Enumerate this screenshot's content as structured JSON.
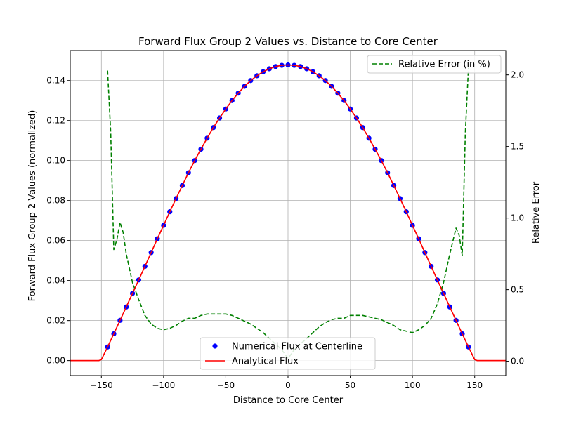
{
  "chart_data": {
    "type": "line",
    "title": "Forward Flux Group 2 Values vs. Distance to Core Center",
    "xlabel": "Distance to Core Center",
    "ylabel": "Forward Flux Group 2 Values (normalized)",
    "y2label": "Relative Error",
    "xlim": [
      -175,
      175
    ],
    "ylim": [
      -0.0075,
      0.155
    ],
    "y2lim": [
      -0.1,
      2.17
    ],
    "grid": true,
    "xticks": [
      -150,
      -100,
      -50,
      0,
      50,
      100,
      150
    ],
    "xtick_labels": [
      "−150",
      "−100",
      "−50",
      "0",
      "50",
      "100",
      "150"
    ],
    "yticks": [
      0.0,
      0.02,
      0.04,
      0.06,
      0.08,
      0.1,
      0.12,
      0.14
    ],
    "ytick_labels": [
      "0.00",
      "0.02",
      "0.04",
      "0.06",
      "0.08",
      "0.10",
      "0.12",
      "0.14"
    ],
    "y2ticks": [
      0.0,
      0.5,
      1.0,
      1.5,
      2.0
    ],
    "y2tick_labels": [
      "0.0",
      "0.5",
      "1.0",
      "1.5",
      "2.0"
    ],
    "series": [
      {
        "name": "Numerical Flux at Centerline",
        "kind": "scatter",
        "axis": "left",
        "color": "#0000ff",
        "edge_color": "#7b1fa2",
        "x": [
          -145,
          -140,
          -135,
          -130,
          -125,
          -120,
          -115,
          -110,
          -105,
          -100,
          -95,
          -90,
          -85,
          -80,
          -75,
          -70,
          -65,
          -60,
          -55,
          -50,
          -45,
          -40,
          -35,
          -30,
          -25,
          -20,
          -15,
          -10,
          -5,
          0,
          5,
          10,
          15,
          20,
          25,
          30,
          35,
          40,
          45,
          50,
          55,
          60,
          65,
          70,
          75,
          80,
          85,
          90,
          95,
          100,
          105,
          110,
          115,
          120,
          125,
          130,
          135,
          140,
          145
        ],
        "y": [
          0.0068,
          0.0134,
          0.0201,
          0.0268,
          0.0336,
          0.0403,
          0.0471,
          0.054,
          0.0609,
          0.0676,
          0.0744,
          0.081,
          0.0875,
          0.0939,
          0.1,
          0.1057,
          0.1112,
          0.1165,
          0.1213,
          0.1258,
          0.13,
          0.1337,
          0.1371,
          0.14,
          0.1424,
          0.1444,
          0.1459,
          0.147,
          0.1476,
          0.1478,
          0.1476,
          0.147,
          0.1459,
          0.1444,
          0.1424,
          0.14,
          0.1371,
          0.1337,
          0.13,
          0.1258,
          0.1213,
          0.1165,
          0.1112,
          0.1057,
          0.1,
          0.0939,
          0.0875,
          0.081,
          0.0744,
          0.0676,
          0.0609,
          0.054,
          0.0471,
          0.0403,
          0.0336,
          0.0268,
          0.0201,
          0.0134,
          0.0068
        ]
      },
      {
        "name": "Analytical Flux",
        "kind": "line",
        "axis": "left",
        "color": "#ff0000",
        "x": [
          -175,
          -152,
          -150,
          -145,
          -140,
          -135,
          -130,
          -125,
          -120,
          -115,
          -110,
          -105,
          -100,
          -95,
          -90,
          -85,
          -80,
          -75,
          -70,
          -65,
          -60,
          -55,
          -50,
          -45,
          -40,
          -35,
          -30,
          -25,
          -20,
          -15,
          -10,
          -5,
          0,
          5,
          10,
          15,
          20,
          25,
          30,
          35,
          40,
          45,
          50,
          55,
          60,
          65,
          70,
          75,
          80,
          85,
          90,
          95,
          100,
          105,
          110,
          115,
          120,
          125,
          130,
          135,
          140,
          145,
          150,
          152,
          175
        ],
        "y": [
          0,
          0,
          0.0005,
          0.0068,
          0.0134,
          0.0201,
          0.0268,
          0.0336,
          0.0403,
          0.0471,
          0.054,
          0.0609,
          0.0676,
          0.0744,
          0.081,
          0.0875,
          0.0939,
          0.1,
          0.1057,
          0.1112,
          0.1165,
          0.1213,
          0.1258,
          0.13,
          0.1337,
          0.1371,
          0.14,
          0.1424,
          0.1444,
          0.1459,
          0.147,
          0.1476,
          0.1478,
          0.1476,
          0.147,
          0.1459,
          0.1444,
          0.1424,
          0.14,
          0.1371,
          0.1337,
          0.13,
          0.1258,
          0.1213,
          0.1165,
          0.1112,
          0.1057,
          0.1,
          0.0939,
          0.0875,
          0.081,
          0.0744,
          0.0676,
          0.0609,
          0.054,
          0.0471,
          0.0403,
          0.0336,
          0.0268,
          0.0201,
          0.0134,
          0.0068,
          0.0005,
          0,
          0
        ]
      },
      {
        "name": "Relative Error (in %)",
        "kind": "line",
        "axis": "right",
        "dash": true,
        "color": "#008000",
        "x": [
          -145,
          -142.5,
          -140,
          -137.5,
          -135,
          -132.5,
          -130,
          -125,
          -120,
          -115,
          -110,
          -105,
          -100,
          -95,
          -90,
          -85,
          -80,
          -75,
          -70,
          -65,
          -60,
          -55,
          -50,
          -45,
          -40,
          -35,
          -30,
          -25,
          -20,
          -15,
          -10,
          -5,
          0,
          5,
          10,
          15,
          20,
          25,
          30,
          35,
          40,
          45,
          50,
          55,
          60,
          65,
          70,
          75,
          80,
          85,
          90,
          95,
          100,
          105,
          110,
          115,
          120,
          125,
          130,
          135,
          137.5,
          140,
          142.5,
          145
        ],
        "y": [
          2.03,
          1.6,
          0.78,
          0.85,
          0.97,
          0.9,
          0.75,
          0.55,
          0.43,
          0.32,
          0.26,
          0.23,
          0.22,
          0.23,
          0.25,
          0.28,
          0.3,
          0.3,
          0.32,
          0.33,
          0.33,
          0.33,
          0.33,
          0.32,
          0.3,
          0.28,
          0.26,
          0.23,
          0.2,
          0.16,
          0.12,
          0.08,
          0.02,
          0.08,
          0.12,
          0.16,
          0.2,
          0.24,
          0.27,
          0.29,
          0.3,
          0.3,
          0.32,
          0.32,
          0.32,
          0.31,
          0.3,
          0.29,
          0.27,
          0.25,
          0.22,
          0.21,
          0.2,
          0.22,
          0.25,
          0.3,
          0.4,
          0.55,
          0.75,
          0.93,
          0.88,
          0.74,
          1.6,
          2.05
        ]
      }
    ],
    "legends": [
      {
        "placement": "upper-right",
        "entries": [
          "Relative Error (in %)"
        ]
      },
      {
        "placement": "lower-center",
        "entries": [
          "Numerical Flux at Centerline",
          "Analytical Flux"
        ]
      }
    ]
  }
}
